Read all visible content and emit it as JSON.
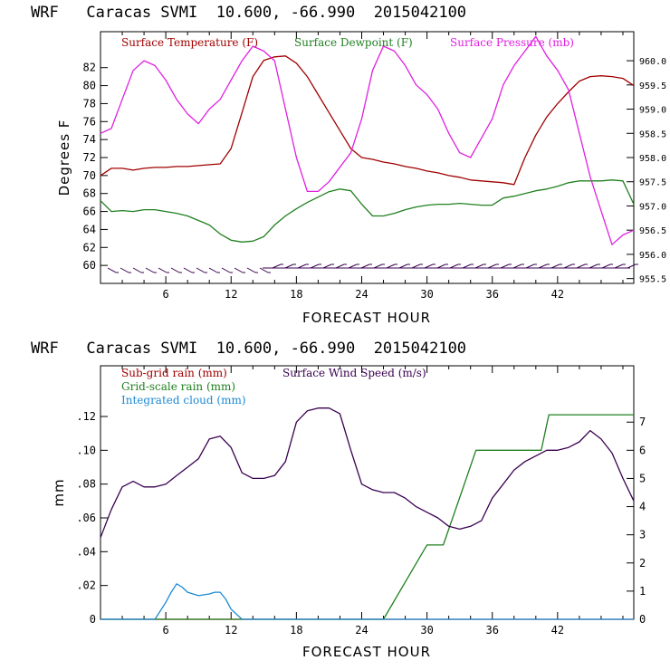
{
  "chart_data": [
    {
      "type": "line",
      "title": "WRF   Caracas SVMI  10.600, -66.990  2015042100",
      "xlabel": "FORECAST HOUR",
      "ylabel": "Degrees F",
      "xlim": [
        0,
        49
      ],
      "ylim": [
        58,
        86
      ],
      "y2lim": [
        955.4,
        960.6
      ],
      "xticks": [
        6,
        12,
        18,
        24,
        30,
        36,
        42
      ],
      "yticks": [
        60,
        62,
        64,
        66,
        68,
        70,
        72,
        74,
        76,
        78,
        80,
        82
      ],
      "y2ticks": [
        955.5,
        956.0,
        956.5,
        957.0,
        957.5,
        958.0,
        958.5,
        959.0,
        959.5,
        960.0
      ],
      "y2tick_labels": [
        "955.5",
        "956.0",
        "956.5",
        "957.0",
        "957.5",
        "958.0",
        "958.5",
        "959.0",
        "959.5",
        "960.0"
      ],
      "series": [
        {
          "name": "Surface Temperature (F)",
          "color": "#a00000",
          "axis": "left",
          "x": [
            0,
            1,
            2,
            3,
            4,
            5,
            6,
            7,
            8,
            9,
            10,
            11,
            12,
            13,
            14,
            15,
            16,
            17,
            18,
            19,
            20,
            21,
            22,
            23,
            24,
            25,
            26,
            27,
            28,
            29,
            30,
            31,
            32,
            33,
            34,
            35,
            36,
            37,
            38,
            39,
            40,
            41,
            42,
            43,
            44,
            45,
            46,
            47,
            48,
            49
          ],
          "y": [
            70.0,
            70.8,
            70.8,
            70.6,
            70.8,
            70.9,
            70.9,
            71.0,
            71.0,
            71.1,
            71.2,
            71.3,
            73.0,
            77.0,
            81.0,
            82.8,
            83.2,
            83.3,
            82.5,
            81.0,
            79.0,
            77.0,
            75.0,
            73.0,
            72.0,
            71.8,
            71.5,
            71.3,
            71.0,
            70.8,
            70.5,
            70.3,
            70.0,
            69.8,
            69.5,
            69.4,
            69.3,
            69.2,
            69.0,
            72.0,
            74.5,
            76.5,
            78.0,
            79.3,
            80.5,
            81.0,
            81.1,
            81.0,
            80.8,
            80.0
          ]
        },
        {
          "name": "Surface Dewpoint (F)",
          "color": "#208020",
          "axis": "left",
          "x": [
            0,
            1,
            2,
            3,
            4,
            5,
            6,
            7,
            8,
            9,
            10,
            11,
            12,
            13,
            14,
            15,
            16,
            17,
            18,
            19,
            20,
            21,
            22,
            23,
            24,
            25,
            26,
            27,
            28,
            29,
            30,
            31,
            32,
            33,
            34,
            35,
            36,
            37,
            38,
            39,
            40,
            41,
            42,
            43,
            44,
            45,
            46,
            47,
            48,
            49
          ],
          "y": [
            67.2,
            66.0,
            66.1,
            66.0,
            66.2,
            66.2,
            66.0,
            65.8,
            65.5,
            65.0,
            64.5,
            63.5,
            62.8,
            62.6,
            62.7,
            63.2,
            64.5,
            65.5,
            66.3,
            67.0,
            67.6,
            68.2,
            68.5,
            68.3,
            66.8,
            65.5,
            65.5,
            65.8,
            66.2,
            66.5,
            66.7,
            66.8,
            66.8,
            66.9,
            66.8,
            66.7,
            66.7,
            67.5,
            67.7,
            68.0,
            68.3,
            68.5,
            68.8,
            69.2,
            69.4,
            69.4,
            69.4,
            69.5,
            69.4,
            66.8
          ]
        },
        {
          "name": "Surface Pressure (mb)",
          "color": "#e020e0",
          "axis": "right",
          "x": [
            0,
            1,
            2,
            3,
            4,
            5,
            6,
            7,
            8,
            9,
            10,
            11,
            12,
            13,
            14,
            15,
            16,
            17,
            18,
            19,
            20,
            21,
            22,
            23,
            24,
            25,
            26,
            27,
            28,
            29,
            30,
            31,
            32,
            33,
            34,
            35,
            36,
            37,
            38,
            39,
            40,
            41,
            42,
            43,
            44,
            45,
            46,
            47,
            48,
            49
          ],
          "y": [
            958.5,
            958.6,
            959.2,
            959.8,
            960.0,
            959.9,
            959.6,
            959.2,
            958.9,
            958.7,
            959.0,
            959.2,
            959.6,
            960.0,
            960.3,
            960.2,
            960.0,
            959.0,
            958.0,
            957.3,
            957.3,
            957.5,
            957.8,
            958.1,
            958.8,
            959.8,
            960.3,
            960.2,
            959.9,
            959.5,
            959.3,
            959.0,
            958.5,
            958.1,
            958.0,
            958.4,
            958.8,
            959.5,
            959.9,
            960.2,
            960.5,
            960.1,
            959.8,
            959.4,
            958.5,
            957.6,
            956.9,
            956.2,
            956.4,
            956.5
          ]
        }
      ],
      "legend": [
        "Surface Temperature (F)",
        "Surface Dewpoint (F)",
        "Surface Pressure (mb)"
      ],
      "legend_placement": "top-left"
    },
    {
      "type": "line",
      "title": "WRF   Caracas SVMI  10.600, -66.990  2015042100",
      "xlabel": "FORECAST HOUR",
      "ylabel": "mm",
      "xlim": [
        0,
        49
      ],
      "ylim": [
        0,
        0.15
      ],
      "y2lim": [
        0,
        9
      ],
      "xticks": [
        6,
        12,
        18,
        24,
        30,
        36,
        42
      ],
      "yticks": [
        0,
        0.02,
        0.04,
        0.06,
        0.08,
        0.1,
        0.12
      ],
      "ytick_labels": [
        "0",
        ".02",
        ".04",
        ".06",
        ".08",
        ".10",
        ".12"
      ],
      "y2ticks": [
        0,
        1,
        2,
        3,
        4,
        5,
        6,
        7
      ],
      "y2tick_labels": [
        "0",
        "1",
        "2",
        "3",
        "4",
        "5",
        "6",
        "7"
      ],
      "series": [
        {
          "name": "Sub-grid rain (mm)",
          "color": "#a00000",
          "axis": "left",
          "x": [
            0,
            49
          ],
          "y": [
            0,
            0
          ]
        },
        {
          "name": "Grid-scale rain (mm)",
          "color": "#208020",
          "axis": "left",
          "x": [
            0,
            26,
            30,
            31.5,
            33,
            34.5,
            36,
            40.5,
            41.2,
            42,
            49
          ],
          "y": [
            0,
            0,
            0.044,
            0.044,
            0.072,
            0.1,
            0.1,
            0.1,
            0.121,
            0.121,
            0.121
          ]
        },
        {
          "name": "Integrated cloud (mm)",
          "color": "#1a8ad4",
          "axis": "left",
          "x": [
            0,
            4,
            5,
            6,
            6.5,
            7,
            7.5,
            8,
            9,
            10,
            10.5,
            11,
            11.5,
            12,
            13,
            14,
            49
          ],
          "y": [
            0,
            0,
            0,
            0.01,
            0.016,
            0.021,
            0.019,
            0.016,
            0.014,
            0.015,
            0.016,
            0.016,
            0.012,
            0.006,
            0.0,
            0,
            0
          ]
        },
        {
          "name": "Surface Wind Speed (m/s)",
          "color": "#3a0050",
          "axis": "right",
          "x": [
            0,
            1,
            2,
            3,
            4,
            5,
            6,
            7,
            8,
            9,
            10,
            11,
            12,
            13,
            14,
            15,
            16,
            17,
            18,
            19,
            20,
            21,
            22,
            23,
            24,
            25,
            26,
            27,
            28,
            29,
            30,
            31,
            32,
            33,
            34,
            35,
            36,
            37,
            38,
            39,
            40,
            41,
            42,
            43,
            44,
            45,
            46,
            47,
            48,
            49
          ],
          "y": [
            2.9,
            3.9,
            4.7,
            4.9,
            4.7,
            4.7,
            4.8,
            5.1,
            5.4,
            5.7,
            6.4,
            6.5,
            6.1,
            5.2,
            5.0,
            5.0,
            5.1,
            5.6,
            7.0,
            7.4,
            7.5,
            7.5,
            7.3,
            6.0,
            4.8,
            4.6,
            4.5,
            4.5,
            4.3,
            4.0,
            3.8,
            3.6,
            3.3,
            3.2,
            3.3,
            3.5,
            4.3,
            4.8,
            5.3,
            5.6,
            5.8,
            6.0,
            6.0,
            6.1,
            6.3,
            6.7,
            6.4,
            5.9,
            5.0,
            4.2
          ]
        }
      ],
      "legend": [
        "Sub-grid rain (mm)",
        "Grid-scale rain (mm)",
        "Integrated cloud (mm)",
        "Surface Wind Speed (m/s)"
      ],
      "legend_placement": "top-left"
    }
  ]
}
